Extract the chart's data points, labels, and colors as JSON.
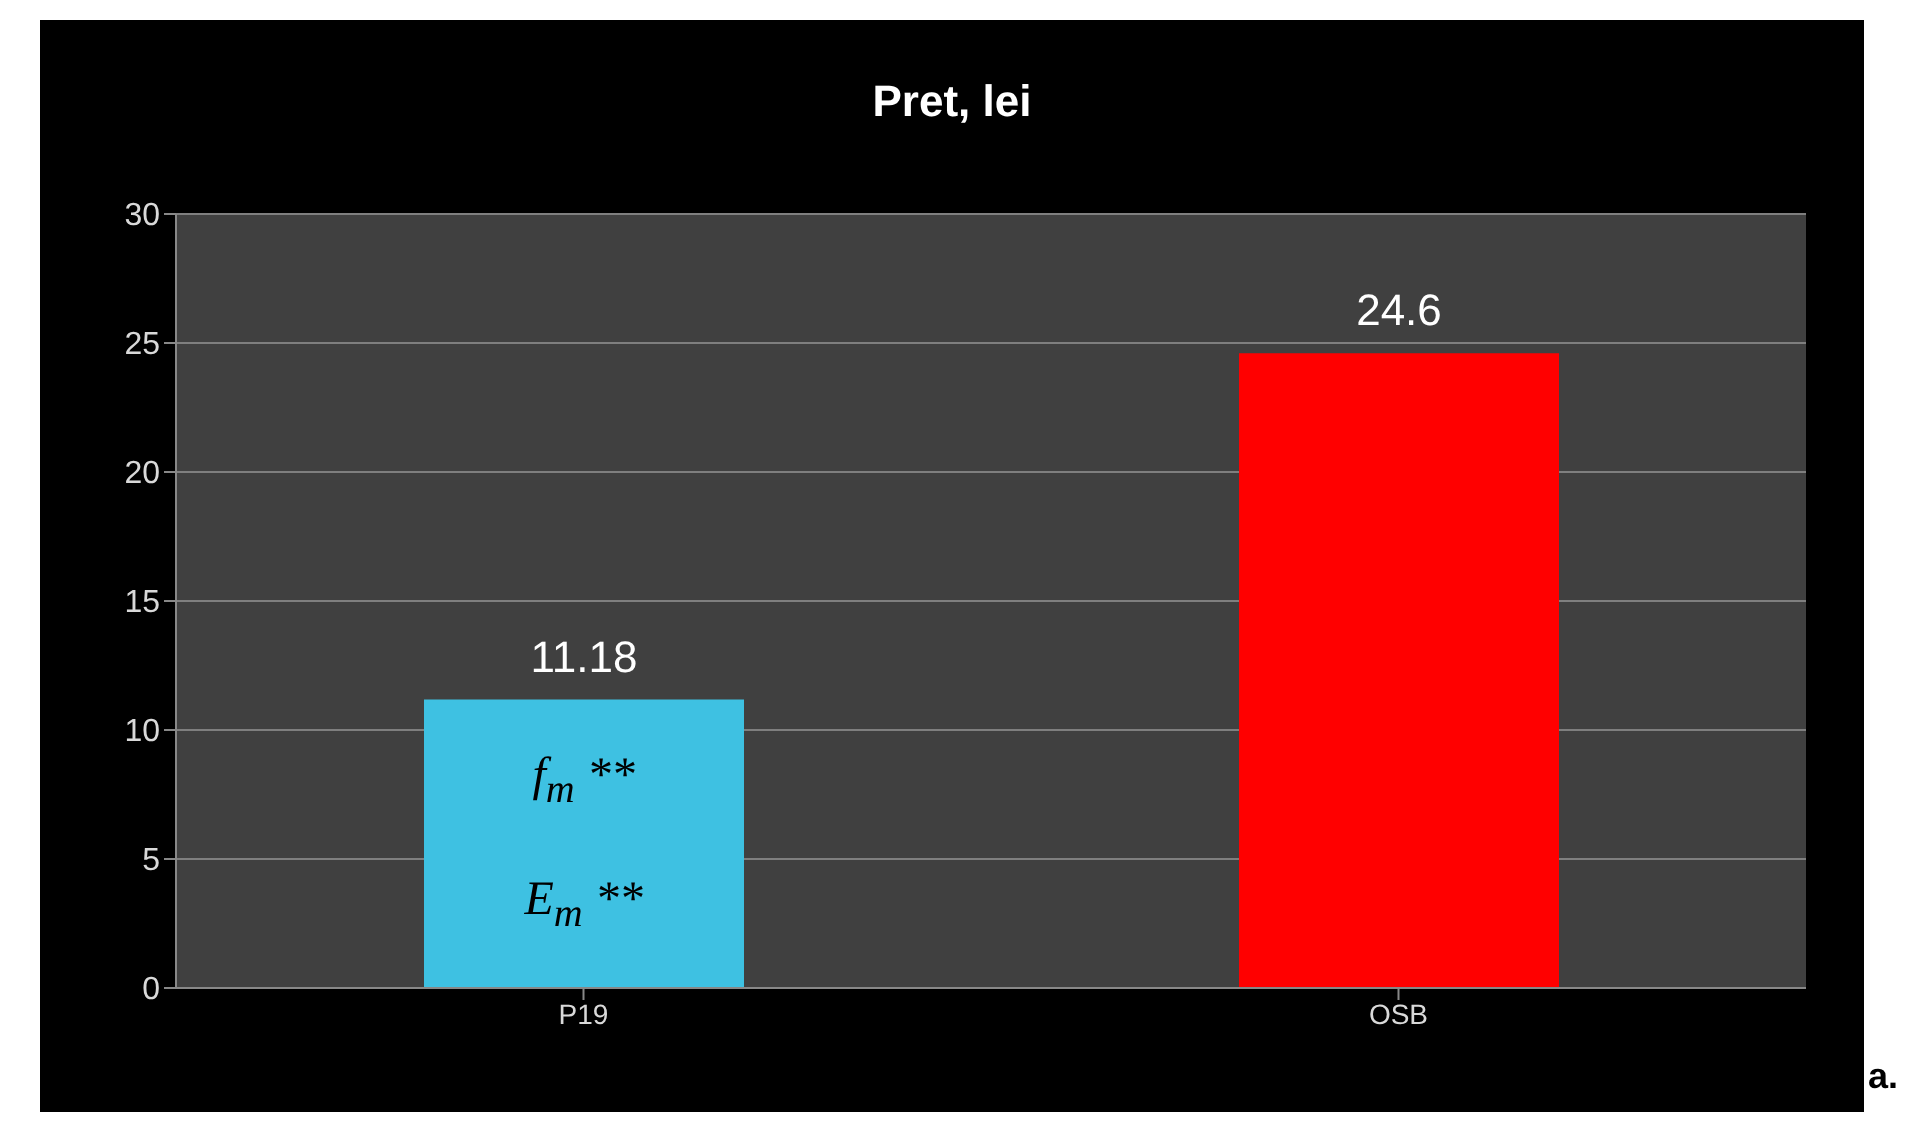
{
  "chart_data": {
    "type": "bar",
    "title": "Pret, lei",
    "categories": [
      "P19",
      "OSB"
    ],
    "values": [
      11.18,
      24.6
    ],
    "colors": [
      "#3ec1e2",
      "#ff0000"
    ],
    "ylim": [
      0,
      30
    ],
    "yticks": [
      0,
      5,
      10,
      15,
      20,
      25,
      30
    ],
    "grid": "y",
    "data_labels": true,
    "annotations": [
      "f$_{m}$ **",
      "E$_{m}$ **",
      "a."
    ]
  }
}
